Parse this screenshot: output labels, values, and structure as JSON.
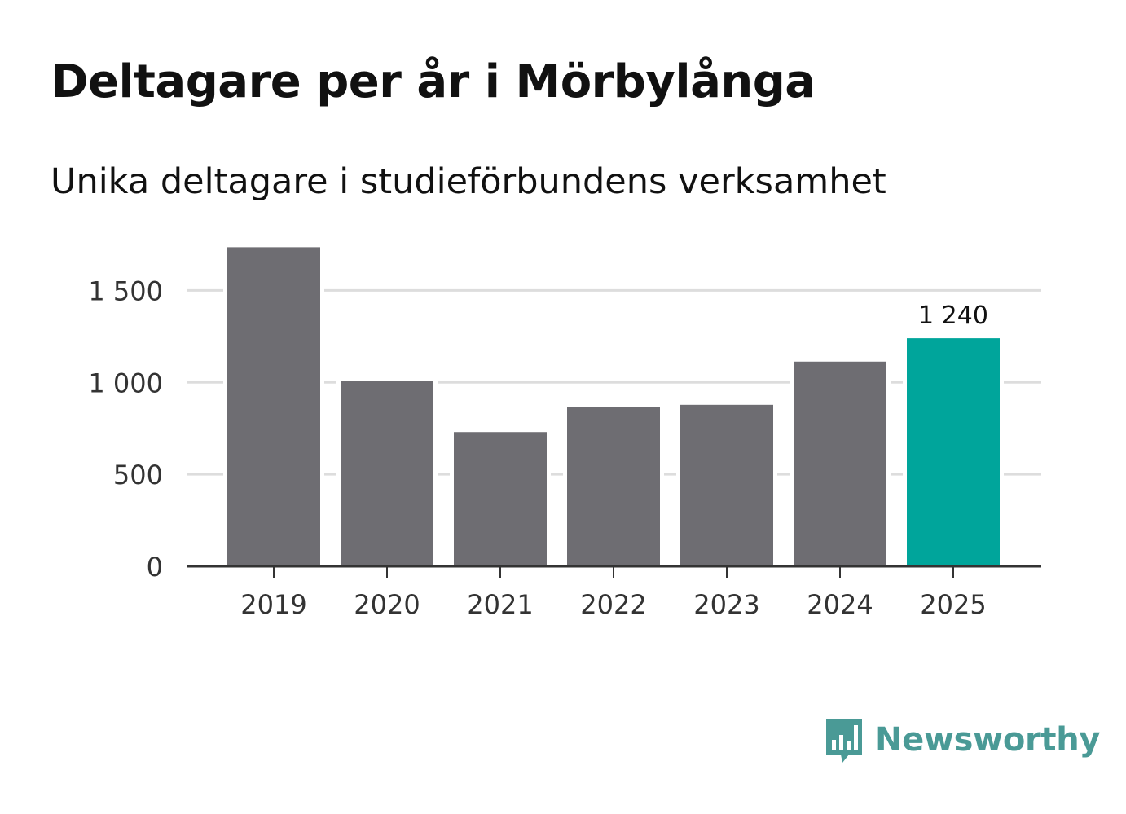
{
  "title": "Deltagare per år i Mörbylånga",
  "subtitle": "Unika deltagare i studieförbundens verksamhet",
  "brand": {
    "name": "Newsworthy",
    "color": "#4a9a96",
    "icon": "bar-chart-speech-bubble-icon"
  },
  "colors": {
    "bar": "#6e6d72",
    "highlight": "#00a59b",
    "grid": "#dddddd",
    "axis": "#333333"
  },
  "chart_data": {
    "type": "bar",
    "title": "Deltagare per år i Mörbylånga",
    "subtitle": "Unika deltagare i studieförbundens verksamhet",
    "xlabel": "",
    "ylabel": "",
    "categories": [
      "2019",
      "2020",
      "2021",
      "2022",
      "2023",
      "2024",
      "2025"
    ],
    "values": [
      1735,
      1010,
      730,
      868,
      878,
      1113,
      1240
    ],
    "highlight": "2025",
    "data_labels": [
      {
        "category": "2025",
        "text": "1 240"
      }
    ],
    "ylim": [
      0,
      1750
    ],
    "yticks": [
      0,
      500,
      1000,
      1500
    ],
    "ytick_labels": [
      "0",
      "500",
      "1 000",
      "1 500"
    ],
    "grid": true
  }
}
